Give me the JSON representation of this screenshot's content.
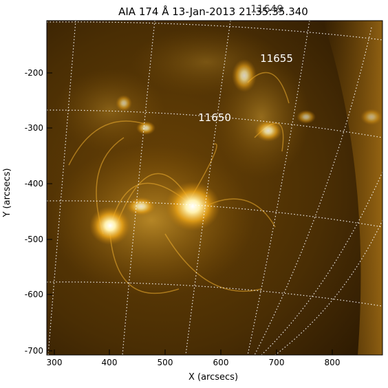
{
  "title": "AIA 174 Å 13-Jan-2013 21:35:35.340",
  "title_overlay": "11649",
  "xlabel": "X (arcsecs)",
  "ylabel": "Y (arcsecs)",
  "x_ticks": [
    "300",
    "400",
    "500",
    "600",
    "700",
    "800"
  ],
  "y_ticks": [
    "-200",
    "-300",
    "-400",
    "-500",
    "-600",
    "-700"
  ],
  "annotations": [
    "11655",
    "11650"
  ],
  "colors": {
    "background": "#ffffff",
    "axis": "#000000",
    "grid": "#ffffff",
    "sun_dark": "#2a1a02",
    "sun_mid": "#a06a08",
    "sun_bright": "#ffd86a"
  },
  "image": {
    "instrument": "AIA 174 Å",
    "grid": "on"
  }
}
